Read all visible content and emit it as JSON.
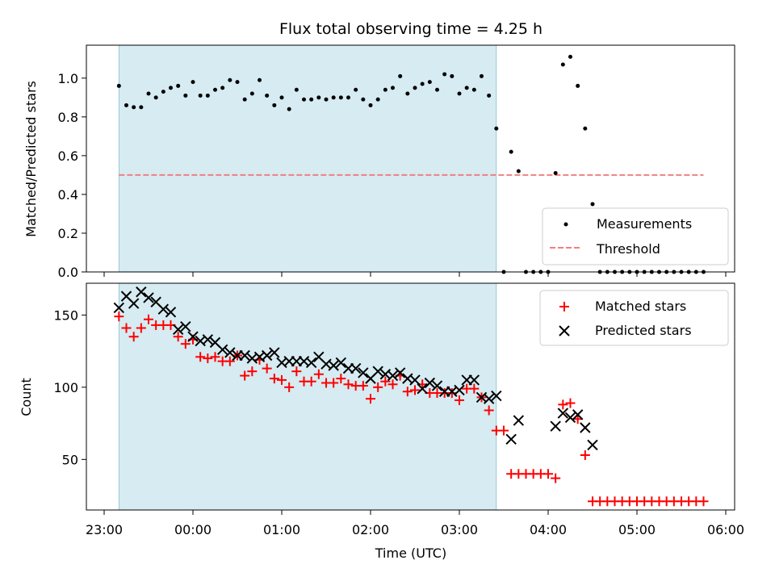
{
  "chart_data": [
    {
      "type": "scatter",
      "panel": "top",
      "title": "Flux total observing time = 4.25 h",
      "xlabel": "",
      "ylabel": "Matched/Predicted stars",
      "xlim": [
        "22:48",
        "06:06"
      ],
      "ylim": [
        0,
        1.17
      ],
      "yticks": [
        "0.0",
        "0.2",
        "0.4",
        "0.6",
        "0.8",
        "1.0"
      ],
      "grid": false,
      "legend_position": "lower-right",
      "shaded_span": [
        "23:10",
        "03:25"
      ],
      "series": [
        {
          "name": "Measurements",
          "color": "#000000",
          "marker": "dot",
          "x": [
            "23:10",
            "23:15",
            "23:20",
            "23:25",
            "23:30",
            "23:35",
            "23:40",
            "23:45",
            "23:50",
            "23:55",
            "00:00",
            "00:05",
            "00:10",
            "00:15",
            "00:20",
            "00:25",
            "00:30",
            "00:35",
            "00:40",
            "00:45",
            "00:50",
            "00:55",
            "01:00",
            "01:05",
            "01:10",
            "01:15",
            "01:20",
            "01:25",
            "01:30",
            "01:35",
            "01:40",
            "01:45",
            "01:50",
            "01:55",
            "02:00",
            "02:05",
            "02:10",
            "02:15",
            "02:20",
            "02:25",
            "02:30",
            "02:35",
            "02:40",
            "02:45",
            "02:50",
            "02:55",
            "03:00",
            "03:05",
            "03:10",
            "03:15",
            "03:20",
            "03:25",
            "03:30",
            "03:35",
            "03:40",
            "03:45",
            "03:50",
            "03:55",
            "04:00",
            "04:05",
            "04:10",
            "04:15",
            "04:20",
            "04:25",
            "04:30",
            "04:35",
            "04:40",
            "04:45",
            "04:50",
            "04:55",
            "05:00",
            "05:05",
            "05:10",
            "05:15",
            "05:20",
            "05:25",
            "05:30",
            "05:35",
            "05:40",
            "05:45"
          ],
          "y": [
            0.96,
            0.86,
            0.85,
            0.85,
            0.92,
            0.9,
            0.93,
            0.95,
            0.96,
            0.91,
            0.98,
            0.91,
            0.91,
            0.94,
            0.95,
            0.99,
            0.98,
            0.89,
            0.92,
            0.99,
            0.91,
            0.86,
            0.9,
            0.84,
            0.94,
            0.89,
            0.89,
            0.9,
            0.89,
            0.9,
            0.9,
            0.9,
            0.94,
            0.89,
            0.86,
            0.89,
            0.94,
            0.95,
            1.01,
            0.92,
            0.95,
            0.97,
            0.98,
            0.94,
            1.02,
            1.01,
            0.92,
            0.95,
            0.94,
            1.01,
            0.91,
            0.74,
            0.0,
            0.62,
            0.52,
            0.0,
            0.0,
            0.0,
            0.0,
            0.51,
            1.07,
            1.11,
            0.96,
            0.74,
            0.35,
            0.0,
            0.0,
            0.0,
            0.0,
            0.0,
            0.0,
            0.0,
            0.0,
            0.0,
            0.0,
            0.0,
            0.0,
            0.0,
            0.0,
            0.0
          ]
        },
        {
          "name": "Threshold",
          "color": "#f08080",
          "style": "dashed",
          "x": [
            "23:10",
            "05:45"
          ],
          "y": [
            0.5,
            0.5
          ]
        }
      ]
    },
    {
      "type": "scatter",
      "panel": "bottom",
      "title": "",
      "xlabel": "Time (UTC)",
      "ylabel": "Count",
      "xlim": [
        "22:48",
        "06:06"
      ],
      "ylim": [
        15,
        172
      ],
      "yticks": [
        "50",
        "100",
        "150"
      ],
      "xticks": [
        "23:00",
        "00:00",
        "01:00",
        "02:00",
        "03:00",
        "04:00",
        "05:00",
        "06:00"
      ],
      "grid": false,
      "legend_position": "top-right",
      "shaded_span": [
        "23:10",
        "03:25"
      ],
      "series": [
        {
          "name": "Matched stars",
          "color": "#ff0000",
          "marker": "plus",
          "x": [
            "23:10",
            "23:15",
            "23:20",
            "23:25",
            "23:30",
            "23:35",
            "23:40",
            "23:45",
            "23:50",
            "23:55",
            "00:00",
            "00:05",
            "00:10",
            "00:15",
            "00:20",
            "00:25",
            "00:30",
            "00:35",
            "00:40",
            "00:45",
            "00:50",
            "00:55",
            "01:00",
            "01:05",
            "01:10",
            "01:15",
            "01:20",
            "01:25",
            "01:30",
            "01:35",
            "01:40",
            "01:45",
            "01:50",
            "01:55",
            "02:00",
            "02:05",
            "02:10",
            "02:15",
            "02:20",
            "02:25",
            "02:30",
            "02:35",
            "02:40",
            "02:45",
            "02:50",
            "02:55",
            "03:00",
            "03:05",
            "03:10",
            "03:15",
            "03:20",
            "03:25",
            "03:30",
            "03:35",
            "03:40",
            "03:45",
            "03:50",
            "03:55",
            "04:00",
            "04:05",
            "04:10",
            "04:15",
            "04:20",
            "04:25",
            "04:30",
            "04:35",
            "04:40",
            "04:45",
            "04:50",
            "04:55",
            "05:00",
            "05:05",
            "05:10",
            "05:15",
            "05:20",
            "05:25",
            "05:30",
            "05:35",
            "05:40",
            "05:45"
          ],
          "y": [
            149,
            141,
            135,
            141,
            147,
            143,
            143,
            143,
            135,
            130,
            133,
            121,
            120,
            121,
            118,
            118,
            122,
            108,
            111,
            119,
            113,
            106,
            105,
            100,
            111,
            104,
            104,
            109,
            103,
            103,
            106,
            102,
            101,
            101,
            92,
            100,
            104,
            102,
            108,
            97,
            98,
            102,
            96,
            96,
            96,
            96,
            91,
            99,
            99,
            93,
            84,
            70,
            70,
            40,
            40,
            40,
            40,
            40,
            40,
            37,
            88,
            89,
            78,
            53,
            21,
            21,
            21,
            21,
            21,
            21,
            21,
            21,
            21,
            21,
            21,
            21,
            21,
            21,
            21,
            21
          ]
        },
        {
          "name": "Predicted stars",
          "color": "#000000",
          "marker": "x",
          "x": [
            "23:10",
            "23:15",
            "23:20",
            "23:25",
            "23:30",
            "23:35",
            "23:40",
            "23:45",
            "23:50",
            "23:55",
            "00:00",
            "00:05",
            "00:10",
            "00:15",
            "00:20",
            "00:25",
            "00:30",
            "00:35",
            "00:40",
            "00:45",
            "00:50",
            "00:55",
            "01:00",
            "01:05",
            "01:10",
            "01:15",
            "01:20",
            "01:25",
            "01:30",
            "01:35",
            "01:40",
            "01:45",
            "01:50",
            "01:55",
            "02:00",
            "02:05",
            "02:10",
            "02:15",
            "02:20",
            "02:25",
            "02:30",
            "02:35",
            "02:40",
            "02:45",
            "02:50",
            "02:55",
            "03:00",
            "03:05",
            "03:10",
            "03:15",
            "03:20",
            "03:25",
            "03:35",
            "03:40",
            "04:05",
            "04:10",
            "04:15",
            "04:20",
            "04:25",
            "04:30"
          ],
          "y": [
            155,
            163,
            158,
            166,
            162,
            159,
            154,
            152,
            140,
            142,
            135,
            132,
            133,
            131,
            126,
            124,
            122,
            122,
            120,
            121,
            122,
            124,
            117,
            118,
            118,
            118,
            117,
            121,
            116,
            115,
            117,
            113,
            113,
            110,
            106,
            111,
            109,
            108,
            110,
            106,
            105,
            99,
            103,
            101,
            97,
            97,
            98,
            105,
            105,
            93,
            92,
            94,
            64,
            77,
            73,
            82,
            79,
            81,
            72,
            60
          ]
        }
      ]
    }
  ]
}
